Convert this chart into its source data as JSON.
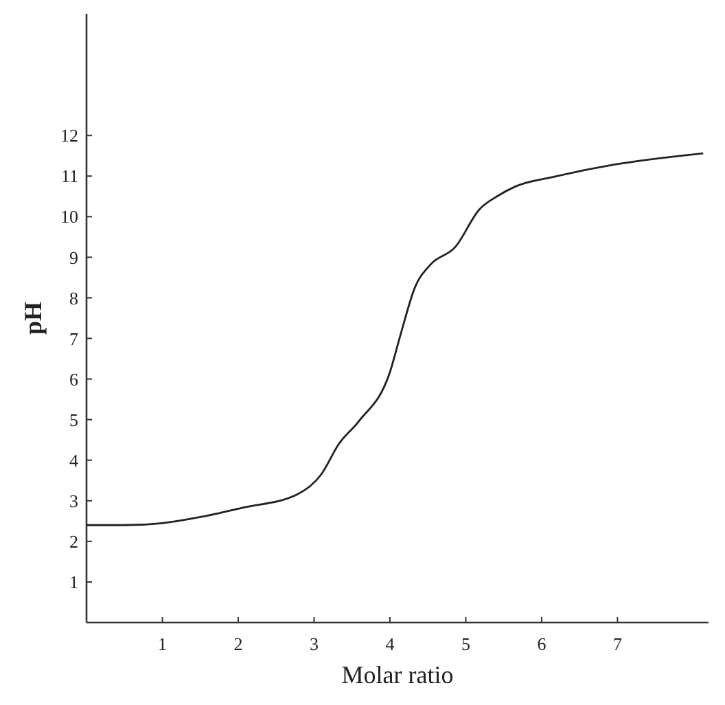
{
  "chart_data": {
    "type": "line",
    "xlabel": "Molar ratio",
    "ylabel": "pH",
    "xlim": [
      0,
      8.2
    ],
    "ylim": [
      0,
      15
    ],
    "xticks": [
      1,
      2,
      3,
      4,
      5,
      6,
      7
    ],
    "yticks": [
      1,
      2,
      3,
      4,
      5,
      6,
      7,
      8,
      9,
      10,
      11,
      12
    ],
    "grid": false,
    "marker": "none",
    "line_style": "solid",
    "series": [
      {
        "color": "#222222",
        "x": [
          0,
          0.5,
          1,
          1.5,
          2.06,
          2.77,
          3.09,
          3.33,
          3.59,
          4.0,
          4.15,
          4.33,
          4.53,
          4.86,
          5.18,
          5.42,
          5.65,
          6.18,
          6.95,
          8.13
        ],
        "values": [
          2.4,
          2.4,
          2.45,
          2.6,
          2.83,
          3.15,
          3.64,
          4.41,
          4.96,
          6.17,
          7.16,
          8.26,
          8.81,
          9.25,
          10.18,
          10.51,
          10.74,
          10.99,
          11.28,
          11.56
        ]
      }
    ]
  }
}
